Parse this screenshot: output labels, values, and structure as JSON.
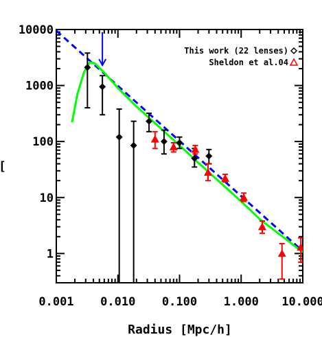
{
  "chart_data": {
    "type": "scatter",
    "title": "",
    "xlabel": "Radius [Mpc/h]",
    "ylabel": "[",
    "xscale": "log",
    "yscale": "log",
    "xlim": [
      0.001,
      10.0
    ],
    "ylim": [
      0.3,
      10000
    ],
    "x_ticks": [
      {
        "value": 0.001,
        "label": "0.001"
      },
      {
        "value": 0.01,
        "label": "0.010"
      },
      {
        "value": 0.1,
        "label": "0.100"
      },
      {
        "value": 1.0,
        "label": "1.000"
      },
      {
        "value": 10.0,
        "label": "10.000"
      }
    ],
    "y_ticks": [
      {
        "value": 1,
        "label": "1"
      },
      {
        "value": 10,
        "label": "10"
      },
      {
        "value": 100,
        "label": "100"
      },
      {
        "value": 1000,
        "label": "1000"
      },
      {
        "value": 10000,
        "label": "10000"
      }
    ],
    "legend_placement": "top-right",
    "grid": false,
    "series": [
      {
        "name": "This work (22 lenses)",
        "marker": "diamond",
        "color": "#000000",
        "points": [
          {
            "x": 0.0032,
            "y": 2100,
            "ylo": 400,
            "yhi": 3800
          },
          {
            "x": 0.0056,
            "y": 950,
            "ylo": 300,
            "yhi": 1500
          },
          {
            "x": 0.0105,
            "y": 120,
            "ylo": 0.3,
            "yhi": 380
          },
          {
            "x": 0.018,
            "y": 85,
            "ylo": 0.3,
            "yhi": 230
          },
          {
            "x": 0.032,
            "y": 230,
            "ylo": 150,
            "yhi": 320
          },
          {
            "x": 0.056,
            "y": 100,
            "ylo": 60,
            "yhi": 160
          },
          {
            "x": 0.1,
            "y": 95,
            "ylo": 75,
            "yhi": 120
          },
          {
            "x": 0.175,
            "y": 50,
            "ylo": 35,
            "yhi": 75
          },
          {
            "x": 0.3,
            "y": 55,
            "ylo": 40,
            "yhi": 72
          }
        ]
      },
      {
        "name": "Sheldon et al.04",
        "marker": "triangle",
        "color": "#ff0000",
        "points": [
          {
            "x": 0.04,
            "y": 110,
            "ylo": 75,
            "yhi": 150
          },
          {
            "x": 0.08,
            "y": 80,
            "ylo": 65,
            "yhi": 95
          },
          {
            "x": 0.18,
            "y": 72,
            "ylo": 60,
            "yhi": 85
          },
          {
            "x": 0.29,
            "y": 28,
            "ylo": 20,
            "yhi": 40
          },
          {
            "x": 0.55,
            "y": 22,
            "ylo": 19,
            "yhi": 26
          },
          {
            "x": 1.1,
            "y": 10,
            "ylo": 8.5,
            "yhi": 12
          },
          {
            "x": 2.2,
            "y": 3.0,
            "ylo": 2.3,
            "yhi": 3.8
          },
          {
            "x": 4.6,
            "y": 1.0,
            "ylo": 0.35,
            "yhi": 1.5
          },
          {
            "x": 9.3,
            "y": 1.3,
            "ylo": 0.7,
            "yhi": 1.9
          }
        ]
      }
    ],
    "model_lines": [
      {
        "style": "dashed",
        "color": "#0000ff",
        "points": [
          {
            "x": 0.001,
            "y": 9500
          },
          {
            "x": 10.0,
            "y": 1.1
          }
        ]
      },
      {
        "style": "solid",
        "color": "#00ff00",
        "points": [
          {
            "x": 0.0018,
            "y": 220
          },
          {
            "x": 0.0022,
            "y": 700
          },
          {
            "x": 0.0028,
            "y": 1700
          },
          {
            "x": 0.0035,
            "y": 2600
          },
          {
            "x": 0.0042,
            "y": 2500
          },
          {
            "x": 0.006,
            "y": 1700
          },
          {
            "x": 0.01,
            "y": 900
          },
          {
            "x": 0.02,
            "y": 420
          },
          {
            "x": 0.05,
            "y": 170
          },
          {
            "x": 0.1,
            "y": 85
          },
          {
            "x": 0.2,
            "y": 42
          },
          {
            "x": 0.5,
            "y": 17
          },
          {
            "x": 1.0,
            "y": 8.5
          },
          {
            "x": 2.0,
            "y": 4.1
          },
          {
            "x": 5.0,
            "y": 1.9
          },
          {
            "x": 10.0,
            "y": 1.05
          }
        ]
      }
    ],
    "annotations": [
      {
        "type": "arrow",
        "color": "#0000ff",
        "x": 0.0056,
        "y_from": 9000,
        "y_to": 2300
      }
    ]
  }
}
